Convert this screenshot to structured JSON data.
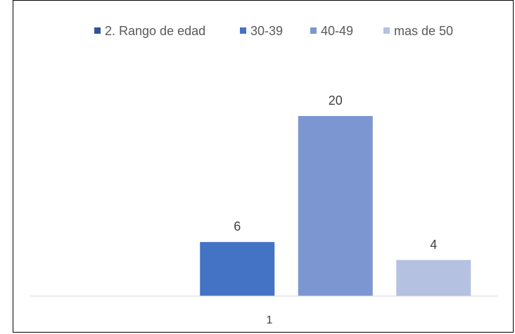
{
  "chart_data": {
    "type": "bar",
    "categories": [
      "1"
    ],
    "series": [
      {
        "name": "2. Rango de edad",
        "values": [
          0
        ],
        "color": "#2f5597"
      },
      {
        "name": "30-39",
        "values": [
          6
        ],
        "color": "#4472c4"
      },
      {
        "name": "40-49",
        "values": [
          20
        ],
        "color": "#7b96d1"
      },
      {
        "name": "mas de 50",
        "values": [
          4
        ],
        "color": "#b4c1e1"
      }
    ],
    "title": "",
    "xlabel": "",
    "ylabel": "",
    "ylim": [
      0,
      25
    ],
    "grid": false,
    "legend": "top"
  }
}
